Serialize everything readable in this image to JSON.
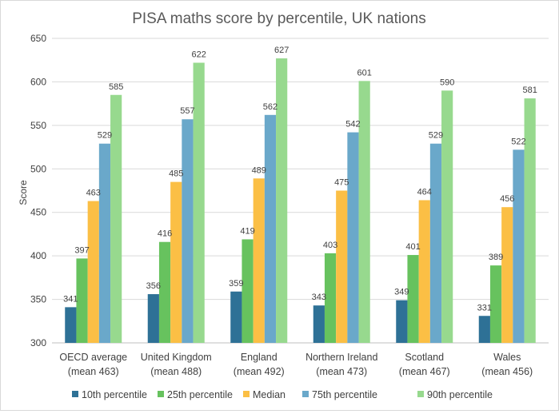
{
  "chart_data": {
    "type": "bar",
    "title": "PISA maths score by percentile, UK nations",
    "ylabel": "Score",
    "xlabel": "",
    "ylim": [
      300,
      650
    ],
    "yticks": [
      300,
      350,
      400,
      450,
      500,
      550,
      600,
      650
    ],
    "grid": true,
    "legend_position": "bottom",
    "categories": [
      [
        "OECD average",
        "(mean 463)"
      ],
      [
        "United Kingdom",
        "(mean 488)"
      ],
      [
        "England",
        "(mean 492)"
      ],
      [
        "Northern Ireland",
        "(mean 473)"
      ],
      [
        "Scotland",
        "(mean 467)"
      ],
      [
        "Wales",
        "(mean 456)"
      ]
    ],
    "series": [
      {
        "name": "10th percentile",
        "color": "#2e7196",
        "values": [
          341,
          356,
          359,
          343,
          349,
          331
        ]
      },
      {
        "name": "25th percentile",
        "color": "#67c25e",
        "values": [
          397,
          416,
          419,
          403,
          401,
          389
        ]
      },
      {
        "name": "Median",
        "color": "#fbbf45",
        "values": [
          463,
          485,
          489,
          475,
          464,
          456
        ]
      },
      {
        "name": "75th percentile",
        "color": "#6aa8ca",
        "values": [
          529,
          557,
          562,
          542,
          529,
          522
        ]
      },
      {
        "name": "90th percentile",
        "color": "#97d98e",
        "values": [
          585,
          622,
          627,
          601,
          590,
          581
        ]
      }
    ]
  }
}
